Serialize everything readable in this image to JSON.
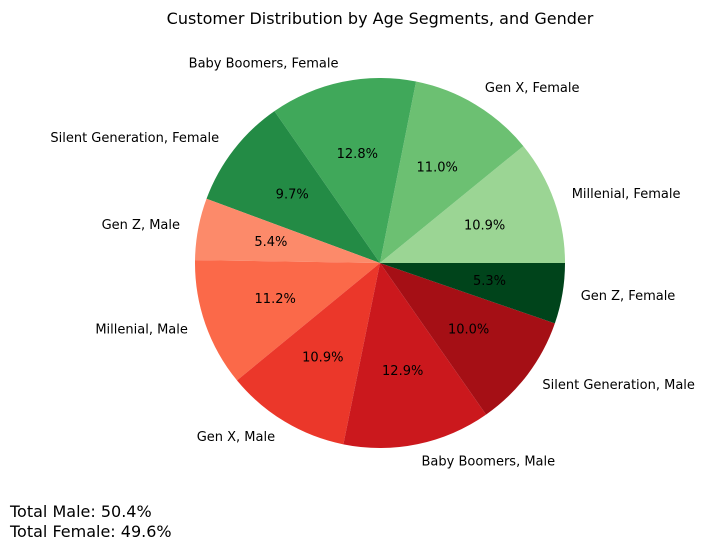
{
  "chart_data": {
    "type": "pie",
    "title": "Customer Distribution by Age Segments, and Gender",
    "slices": [
      {
        "label": "Millenial, Female",
        "value": 10.9,
        "display": "10.9%",
        "color": "#9bd594"
      },
      {
        "label": "Gen X, Female",
        "value": 11.0,
        "display": "11.0%",
        "color": "#6cc072"
      },
      {
        "label": "Baby Boomers, Female",
        "value": 12.8,
        "display": "12.8%",
        "color": "#40a85a"
      },
      {
        "label": "Silent Generation, Female",
        "value": 9.7,
        "display": "9.7%",
        "color": "#238b45"
      },
      {
        "label": "Gen Z, Male",
        "value": 5.4,
        "display": "5.4%",
        "color": "#fc8a6a"
      },
      {
        "label": "Millenial, Male",
        "value": 11.2,
        "display": "11.2%",
        "color": "#fb6949"
      },
      {
        "label": "Gen X, Male",
        "value": 10.9,
        "display": "10.9%",
        "color": "#eb372a"
      },
      {
        "label": "Baby Boomers, Male",
        "value": 12.9,
        "display": "12.9%",
        "color": "#cb181d"
      },
      {
        "label": "Silent Generation, Male",
        "value": 10.0,
        "display": "10.0%",
        "color": "#a50f15"
      },
      {
        "label": "Gen Z, Female",
        "value": 5.3,
        "display": "5.3%",
        "color": "#00441b"
      }
    ],
    "start_angle_deg": 0,
    "direction": "counterclockwise",
    "annotations": [
      "Total Male: 50.4%",
      "Total Female: 49.6%"
    ]
  }
}
